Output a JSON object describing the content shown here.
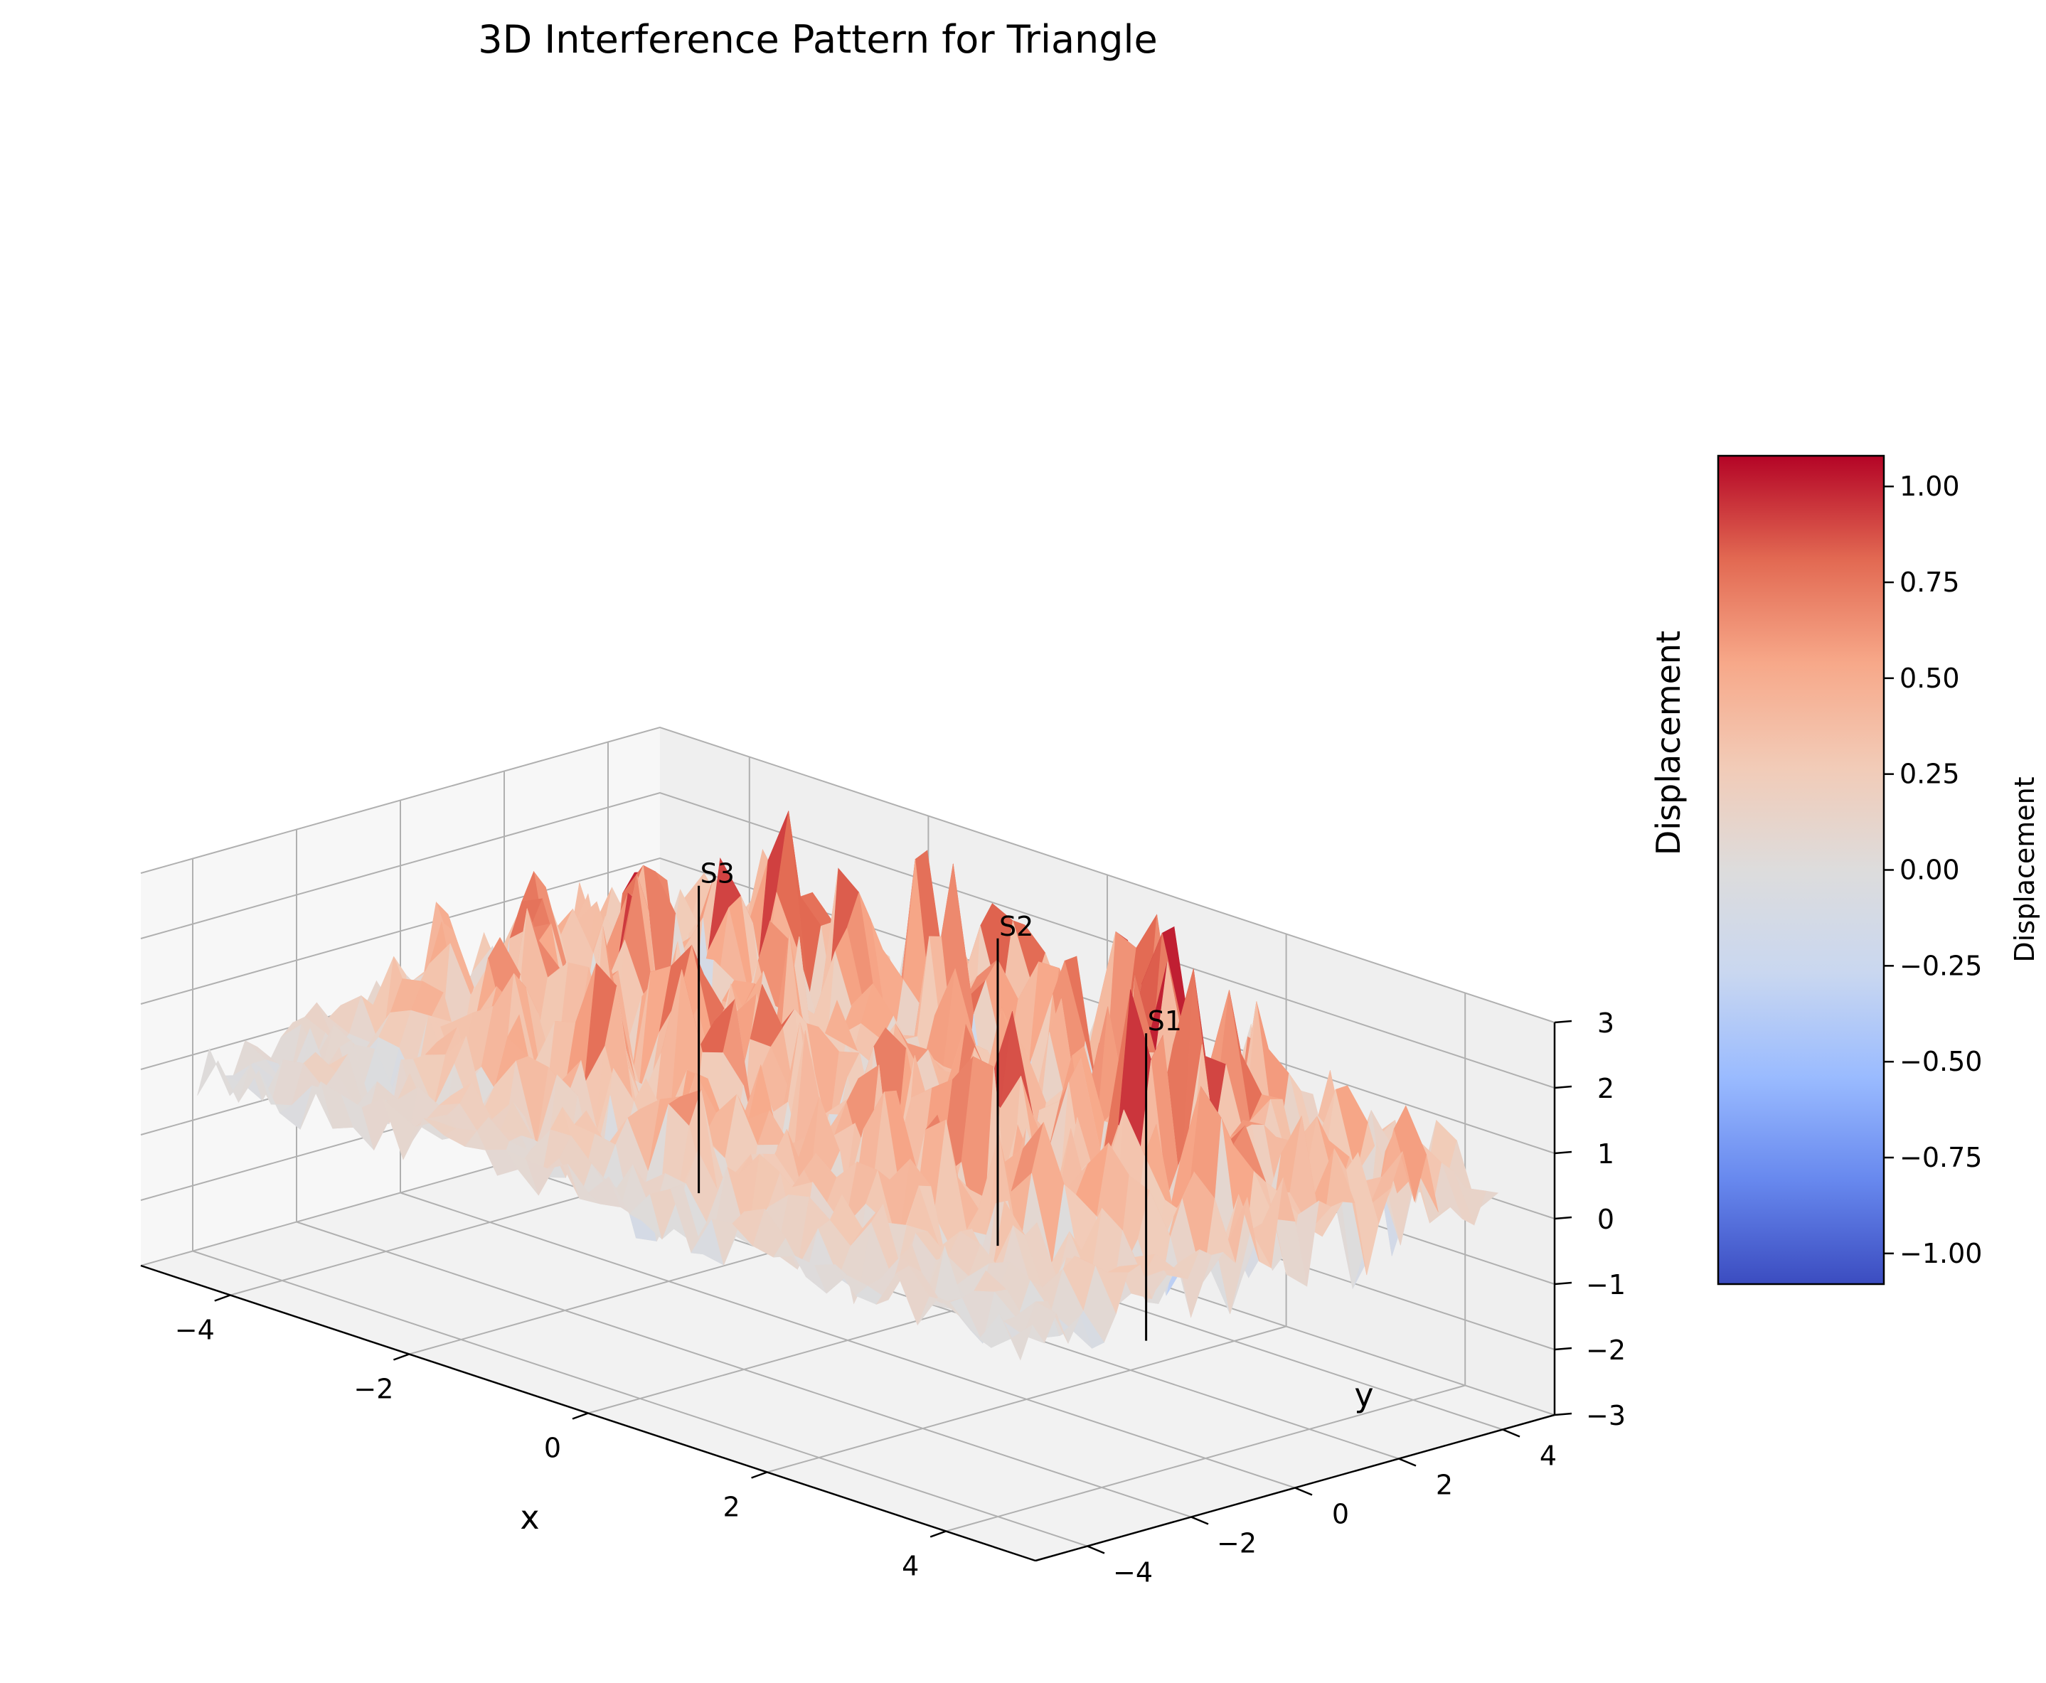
{
  "chart_data": {
    "type": "surface3d",
    "title": "3D Interference Pattern for Triangle",
    "xlabel": "x",
    "ylabel": "y",
    "zlabel": "Displacement",
    "xlim": [
      -5,
      5
    ],
    "ylim": [
      -5,
      5
    ],
    "zlim": [
      -3,
      3
    ],
    "x_ticks": [
      -4,
      -2,
      0,
      2,
      4
    ],
    "x_tick_labels": [
      "−4",
      "−2",
      "0",
      "2",
      "4"
    ],
    "y_ticks": [
      -4,
      -2,
      0,
      2,
      4
    ],
    "y_tick_labels": [
      "−4",
      "−2",
      "0",
      "2",
      "4"
    ],
    "z_ticks": [
      -3,
      -2,
      -1,
      0,
      1,
      2,
      3
    ],
    "z_tick_labels": [
      "−3",
      "−2",
      "−1",
      "0",
      "1",
      "2",
      "3"
    ],
    "grid": true,
    "colormap": "coolwarm",
    "sources": [
      {
        "label": "S1",
        "x": 2.5,
        "y": 1.44
      },
      {
        "label": "S2",
        "x": 0.0,
        "y": 2.89
      },
      {
        "label": "S3",
        "x": -2.5,
        "y": 1.44
      }
    ],
    "colorbar": {
      "label": "Displacement",
      "range": [
        -1.08,
        1.08
      ],
      "ticks": [
        -1.0,
        -0.75,
        -0.5,
        -0.25,
        0.0,
        0.25,
        0.5,
        0.75,
        1.0
      ],
      "tick_labels": [
        "−1.00",
        "−0.75",
        "−0.50",
        "−0.25",
        "0.00",
        "0.25",
        "0.50",
        "0.75",
        "1.00"
      ],
      "colors": [
        "#3b4cc0",
        "#6788ee",
        "#9abbff",
        "#c9d7f0",
        "#dddcdc",
        "#f2cbb7",
        "#f7a889",
        "#e26952",
        "#b40426"
      ]
    }
  }
}
